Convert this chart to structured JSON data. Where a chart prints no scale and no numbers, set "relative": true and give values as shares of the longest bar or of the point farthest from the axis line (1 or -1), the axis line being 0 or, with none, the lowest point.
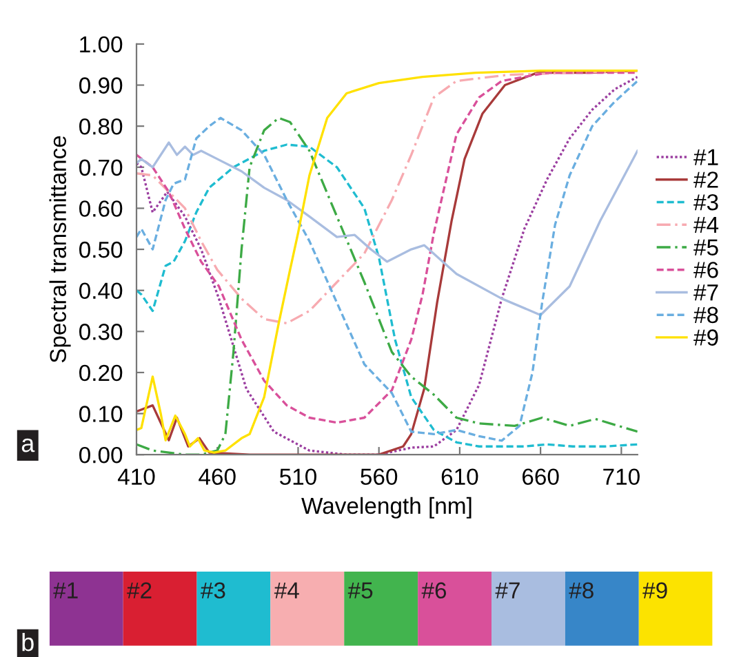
{
  "chart_data": [
    {
      "type": "line",
      "xlabel": "Wavelength [nm]",
      "ylabel": "Spectral transmittance",
      "annotations": [
        "a"
      ],
      "xlim": [
        410,
        720
      ],
      "ylim": [
        0,
        1
      ],
      "xticks": [
        410,
        460,
        510,
        560,
        610,
        660,
        710
      ],
      "yticks": [
        {
          "value": 0,
          "label": "0.00"
        },
        {
          "value": 0.1,
          "label": "0.10"
        },
        {
          "value": 0.2,
          "label": "0.20"
        },
        {
          "value": 0.3,
          "label": "0.30"
        },
        {
          "value": 0.4,
          "label": "0.40"
        },
        {
          "value": 0.5,
          "label": "0.50"
        },
        {
          "value": 0.6,
          "label": "0.60"
        },
        {
          "value": 0.7,
          "label": "0.70"
        },
        {
          "value": 0.8,
          "label": "0.80"
        },
        {
          "value": 0.9,
          "label": "0.90"
        },
        {
          "value": 1,
          "label": "1.00"
        }
      ],
      "grid": false,
      "legend": "right",
      "marker": "none",
      "series": [
        {
          "name": "#1",
          "color": "#9b3ea0",
          "line_style": "dotted",
          "x": [
            410,
            413,
            420,
            429,
            440,
            450,
            461,
            478,
            495,
            517,
            540,
            560,
            580,
            594,
            608,
            622,
            636,
            650,
            664,
            678,
            692,
            706,
            720
          ],
          "values": [
            0.71,
            0.7,
            0.59,
            0.64,
            0.58,
            0.5,
            0.38,
            0.16,
            0.056,
            0.01,
            0.0,
            0.0,
            0.017,
            0.02,
            0.06,
            0.17,
            0.38,
            0.55,
            0.67,
            0.77,
            0.84,
            0.89,
            0.92
          ]
        },
        {
          "name": "#2",
          "color": "#a83a3a",
          "line_style": "solid",
          "x": [
            410,
            420,
            430,
            435,
            442,
            449,
            455,
            480,
            520,
            560,
            575,
            580,
            588,
            596,
            605,
            613,
            624,
            638,
            658,
            690,
            720
          ],
          "values": [
            0.105,
            0.12,
            0.035,
            0.09,
            0.02,
            0.04,
            0.005,
            0.0,
            0.0,
            0.0,
            0.02,
            0.05,
            0.16,
            0.37,
            0.57,
            0.72,
            0.83,
            0.9,
            0.93,
            0.93,
            0.935
          ]
        },
        {
          "name": "#3",
          "color": "#1fbcd0",
          "line_style": "dashed",
          "x": [
            410,
            413,
            420,
            428,
            433,
            440,
            447,
            455,
            470,
            489,
            503,
            517,
            534,
            551,
            560,
            570,
            580,
            594,
            608,
            622,
            650,
            664,
            680,
            700,
            720
          ],
          "values": [
            0.4,
            0.39,
            0.35,
            0.46,
            0.47,
            0.52,
            0.59,
            0.65,
            0.7,
            0.74,
            0.755,
            0.75,
            0.7,
            0.6,
            0.48,
            0.28,
            0.14,
            0.06,
            0.03,
            0.02,
            0.02,
            0.025,
            0.02,
            0.02,
            0.025
          ]
        },
        {
          "name": "#4",
          "color": "#f7aab0",
          "line_style": "dashdot",
          "x": [
            410,
            420,
            430,
            440,
            450,
            460,
            475,
            489,
            503,
            517,
            534,
            551,
            568,
            580,
            587,
            594,
            608,
            640,
            680,
            720
          ],
          "values": [
            0.685,
            0.68,
            0.64,
            0.6,
            0.52,
            0.45,
            0.38,
            0.33,
            0.32,
            0.35,
            0.42,
            0.49,
            0.62,
            0.73,
            0.8,
            0.87,
            0.91,
            0.925,
            0.93,
            0.935
          ]
        },
        {
          "name": "#5",
          "color": "#3daa45",
          "line_style": "dashdot",
          "x": [
            410,
            420,
            440,
            450,
            460,
            465,
            470,
            475,
            480,
            489,
            498,
            505,
            517,
            534,
            551,
            568,
            580,
            594,
            608,
            622,
            644,
            661,
            678,
            694,
            720
          ],
          "values": [
            0.025,
            0.01,
            0.0,
            0.0,
            0.01,
            0.05,
            0.25,
            0.5,
            0.7,
            0.79,
            0.82,
            0.81,
            0.74,
            0.58,
            0.42,
            0.25,
            0.19,
            0.146,
            0.09,
            0.076,
            0.07,
            0.09,
            0.07,
            0.087,
            0.056
          ]
        },
        {
          "name": "#6",
          "color": "#d9509a",
          "line_style": "dashed",
          "x": [
            410,
            420,
            430,
            440,
            450,
            461,
            475,
            489,
            503,
            517,
            534,
            551,
            568,
            580,
            587,
            594,
            608,
            622,
            636,
            664,
            720
          ],
          "values": [
            0.73,
            0.7,
            0.64,
            0.55,
            0.47,
            0.41,
            0.28,
            0.18,
            0.12,
            0.09,
            0.078,
            0.09,
            0.157,
            0.28,
            0.39,
            0.54,
            0.78,
            0.87,
            0.91,
            0.93,
            0.93
          ]
        },
        {
          "name": "#7",
          "color": "#a9bde0",
          "line_style": "solid",
          "x": [
            410,
            413,
            420,
            430,
            435,
            440,
            445,
            450,
            460,
            475,
            489,
            503,
            517,
            534,
            545,
            555,
            565,
            580,
            588,
            608,
            636,
            660,
            678,
            697,
            720
          ],
          "values": [
            0.71,
            0.72,
            0.7,
            0.76,
            0.73,
            0.75,
            0.73,
            0.74,
            0.72,
            0.69,
            0.65,
            0.62,
            0.58,
            0.53,
            0.535,
            0.5,
            0.47,
            0.5,
            0.51,
            0.44,
            0.38,
            0.34,
            0.41,
            0.57,
            0.74
          ]
        },
        {
          "name": "#8",
          "color": "#6aaee0",
          "line_style": "dashed",
          "x": [
            410,
            413,
            420,
            428,
            433,
            440,
            447,
            455,
            462,
            475,
            489,
            503,
            517,
            534,
            551,
            568,
            580,
            594,
            608,
            622,
            636,
            647,
            655,
            661,
            669,
            678,
            692,
            706,
            720
          ],
          "values": [
            0.53,
            0.55,
            0.5,
            0.62,
            0.66,
            0.67,
            0.77,
            0.8,
            0.82,
            0.79,
            0.73,
            0.62,
            0.52,
            0.37,
            0.22,
            0.15,
            0.056,
            0.05,
            0.06,
            0.045,
            0.034,
            0.07,
            0.2,
            0.37,
            0.56,
            0.68,
            0.8,
            0.86,
            0.91
          ]
        },
        {
          "name": "#9",
          "color": "#ffe100",
          "line_style": "solid",
          "x": [
            410,
            413,
            420,
            425,
            428,
            434,
            440,
            443,
            448,
            452,
            458,
            465,
            475,
            480,
            489,
            498,
            505,
            510,
            517,
            528,
            540,
            560,
            587,
            620,
            660,
            720
          ],
          "values": [
            0.06,
            0.065,
            0.19,
            0.1,
            0.035,
            0.095,
            0.05,
            0.02,
            0.04,
            0.01,
            0.005,
            0.01,
            0.04,
            0.05,
            0.14,
            0.32,
            0.45,
            0.54,
            0.68,
            0.82,
            0.88,
            0.905,
            0.92,
            0.93,
            0.935,
            0.935
          ]
        }
      ]
    },
    {
      "type": "bar",
      "relative": true,
      "annotations": [
        "b"
      ],
      "categories": [
        "#1",
        "#2",
        "#3",
        "#4",
        "#5",
        "#6",
        "#7",
        "#8",
        "#9"
      ],
      "values": [
        1,
        1,
        1,
        1,
        1,
        1,
        1,
        1,
        1
      ],
      "colors": [
        "#8e3392",
        "#d91f32",
        "#1fbcd0",
        "#f7aeb0",
        "#42b44e",
        "#d9509a",
        "#a9bde0",
        "#3786c8",
        "#fce300"
      ]
    }
  ]
}
